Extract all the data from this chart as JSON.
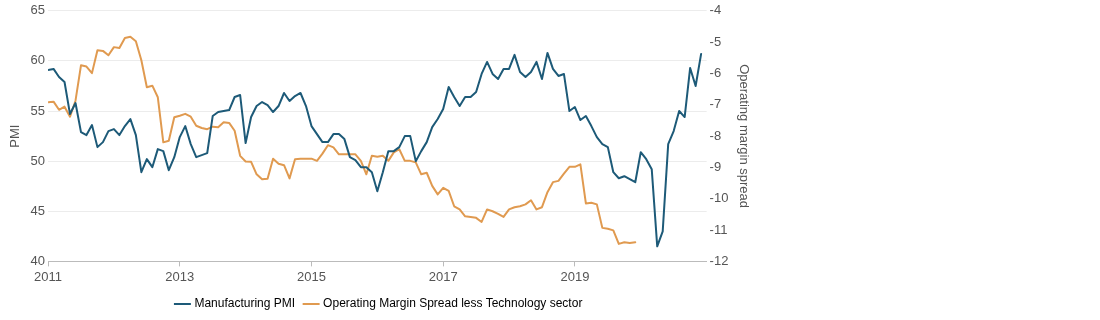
{
  "chart_data": {
    "type": "line",
    "ylabel": "PMI",
    "y2label": "Operating margin spread",
    "x": [
      "2011-01",
      "2011-02",
      "2011-03",
      "2011-04",
      "2011-05",
      "2011-06",
      "2011-07",
      "2011-08",
      "2011-09",
      "2011-10",
      "2011-11",
      "2011-12",
      "2012-01",
      "2012-02",
      "2012-03",
      "2012-04",
      "2012-05",
      "2012-06",
      "2012-07",
      "2012-08",
      "2012-09",
      "2012-10",
      "2012-11",
      "2012-12",
      "2013-01",
      "2013-02",
      "2013-03",
      "2013-04",
      "2013-05",
      "2013-06",
      "2013-07",
      "2013-08",
      "2013-09",
      "2013-10",
      "2013-11",
      "2013-12",
      "2014-01",
      "2014-02",
      "2014-03",
      "2014-04",
      "2014-05",
      "2014-06",
      "2014-07",
      "2014-08",
      "2014-09",
      "2014-10",
      "2014-11",
      "2014-12",
      "2015-01",
      "2015-02",
      "2015-03",
      "2015-04",
      "2015-05",
      "2015-06",
      "2015-07",
      "2015-08",
      "2015-09",
      "2015-10",
      "2015-11",
      "2015-12",
      "2016-01",
      "2016-02",
      "2016-03",
      "2016-04",
      "2016-05",
      "2016-06",
      "2016-07",
      "2016-08",
      "2016-09",
      "2016-10",
      "2016-11",
      "2016-12",
      "2017-01",
      "2017-02",
      "2017-03",
      "2017-04",
      "2017-05",
      "2017-06",
      "2017-07",
      "2017-08",
      "2017-09",
      "2017-10",
      "2017-11",
      "2017-12",
      "2018-01",
      "2018-02",
      "2018-03",
      "2018-04",
      "2018-05",
      "2018-06",
      "2018-07",
      "2018-08",
      "2018-09",
      "2018-10",
      "2018-11",
      "2018-12",
      "2019-01",
      "2019-02",
      "2019-03",
      "2019-04",
      "2019-05",
      "2019-06",
      "2019-07",
      "2019-08",
      "2019-09",
      "2019-10",
      "2019-11",
      "2019-12",
      "2020-01",
      "2020-02",
      "2020-03",
      "2020-04",
      "2020-05",
      "2020-06",
      "2020-07",
      "2020-08",
      "2020-09",
      "2020-10",
      "2020-11",
      "2020-12"
    ],
    "series": [
      {
        "name": "Manufacturing PMI",
        "color": "#1d5a78",
        "values": [
          59.1,
          59.2,
          58.4,
          57.9,
          54.7,
          55.8,
          52.9,
          52.6,
          53.6,
          51.4,
          51.9,
          53.0,
          53.2,
          52.6,
          53.5,
          54.2,
          52.6,
          48.9,
          50.2,
          49.4,
          51.2,
          51.0,
          49.1,
          50.4,
          52.4,
          53.5,
          51.7,
          50.4,
          50.6,
          50.8,
          54.5,
          54.9,
          55.0,
          55.1,
          56.4,
          56.6,
          51.8,
          54.4,
          55.5,
          55.9,
          55.6,
          54.9,
          55.5,
          56.8,
          56.0,
          56.5,
          56.8,
          55.5,
          53.5,
          52.7,
          51.9,
          51.9,
          52.7,
          52.7,
          52.2,
          50.4,
          50.1,
          49.4,
          49.4,
          48.9,
          47.0,
          48.9,
          51.0,
          51.0,
          51.4,
          52.5,
          52.5,
          50.0,
          51.0,
          51.9,
          53.4,
          54.2,
          55.2,
          57.4,
          56.4,
          55.5,
          56.4,
          56.4,
          56.9,
          58.7,
          59.9,
          58.7,
          58.2,
          59.2,
          59.2,
          60.6,
          58.9,
          58.4,
          58.9,
          59.9,
          58.2,
          60.8,
          59.2,
          58.5,
          58.7,
          55.0,
          55.4,
          54.1,
          54.5,
          53.5,
          52.4,
          51.7,
          51.4,
          48.9,
          48.3,
          48.5,
          48.2,
          47.9,
          50.9,
          50.2,
          49.2,
          41.5,
          43.0,
          51.7,
          53.0,
          55.0,
          54.4,
          59.3,
          57.5,
          60.7
        ]
      },
      {
        "name": "Operating Margin Spread less Technology sector",
        "color": "#e09a50",
        "axis": "y2",
        "values": [
          -6.92,
          -6.9,
          -7.16,
          -7.06,
          -7.38,
          -6.87,
          -5.74,
          -5.78,
          -5.99,
          -5.26,
          -5.28,
          -5.42,
          -5.16,
          -5.19,
          -4.87,
          -4.83,
          -4.97,
          -5.58,
          -6.44,
          -6.39,
          -6.76,
          -8.2,
          -8.15,
          -7.4,
          -7.35,
          -7.29,
          -7.38,
          -7.67,
          -7.74,
          -7.78,
          -7.7,
          -7.72,
          -7.56,
          -7.58,
          -7.83,
          -8.63,
          -8.81,
          -8.82,
          -9.22,
          -9.38,
          -9.36,
          -8.72,
          -8.88,
          -8.93,
          -9.35,
          -8.74,
          -8.72,
          -8.72,
          -8.72,
          -8.79,
          -8.56,
          -8.29,
          -8.36,
          -8.58,
          -8.58,
          -8.58,
          -8.58,
          -8.79,
          -9.22,
          -8.63,
          -8.66,
          -8.63,
          -8.79,
          -8.52,
          -8.42,
          -8.79,
          -8.79,
          -8.84,
          -9.22,
          -9.17,
          -9.59,
          -9.86,
          -9.65,
          -9.75,
          -10.24,
          -10.34,
          -10.56,
          -10.58,
          -10.61,
          -10.74,
          -10.34,
          -10.4,
          -10.48,
          -10.58,
          -10.34,
          -10.27,
          -10.24,
          -10.18,
          -10.05,
          -10.34,
          -10.27,
          -9.79,
          -9.47,
          -9.43,
          -9.2,
          -8.98,
          -8.98,
          -8.9,
          -10.15,
          -10.13,
          -10.18,
          -10.93,
          -10.96,
          -11.01,
          -11.44,
          -11.39,
          -11.41,
          -11.39,
          null,
          null,
          null,
          null,
          null,
          null,
          null,
          null,
          null,
          null,
          null,
          null
        ]
      }
    ],
    "xlim": [
      "2011-01",
      "2021-01"
    ],
    "xticks": [
      "2011",
      "2013",
      "2015",
      "2017",
      "2019"
    ],
    "ylim": [
      40,
      65
    ],
    "yticks": [
      40,
      45,
      50,
      55,
      60,
      65
    ],
    "y2lim": [
      -12,
      -4
    ],
    "y2ticks": [
      -12,
      -11,
      -10,
      -9,
      -8,
      -7,
      -6,
      -5,
      -4
    ],
    "grid": "y",
    "legend": "bottom",
    "marker": "none",
    "line_style": "solid"
  }
}
